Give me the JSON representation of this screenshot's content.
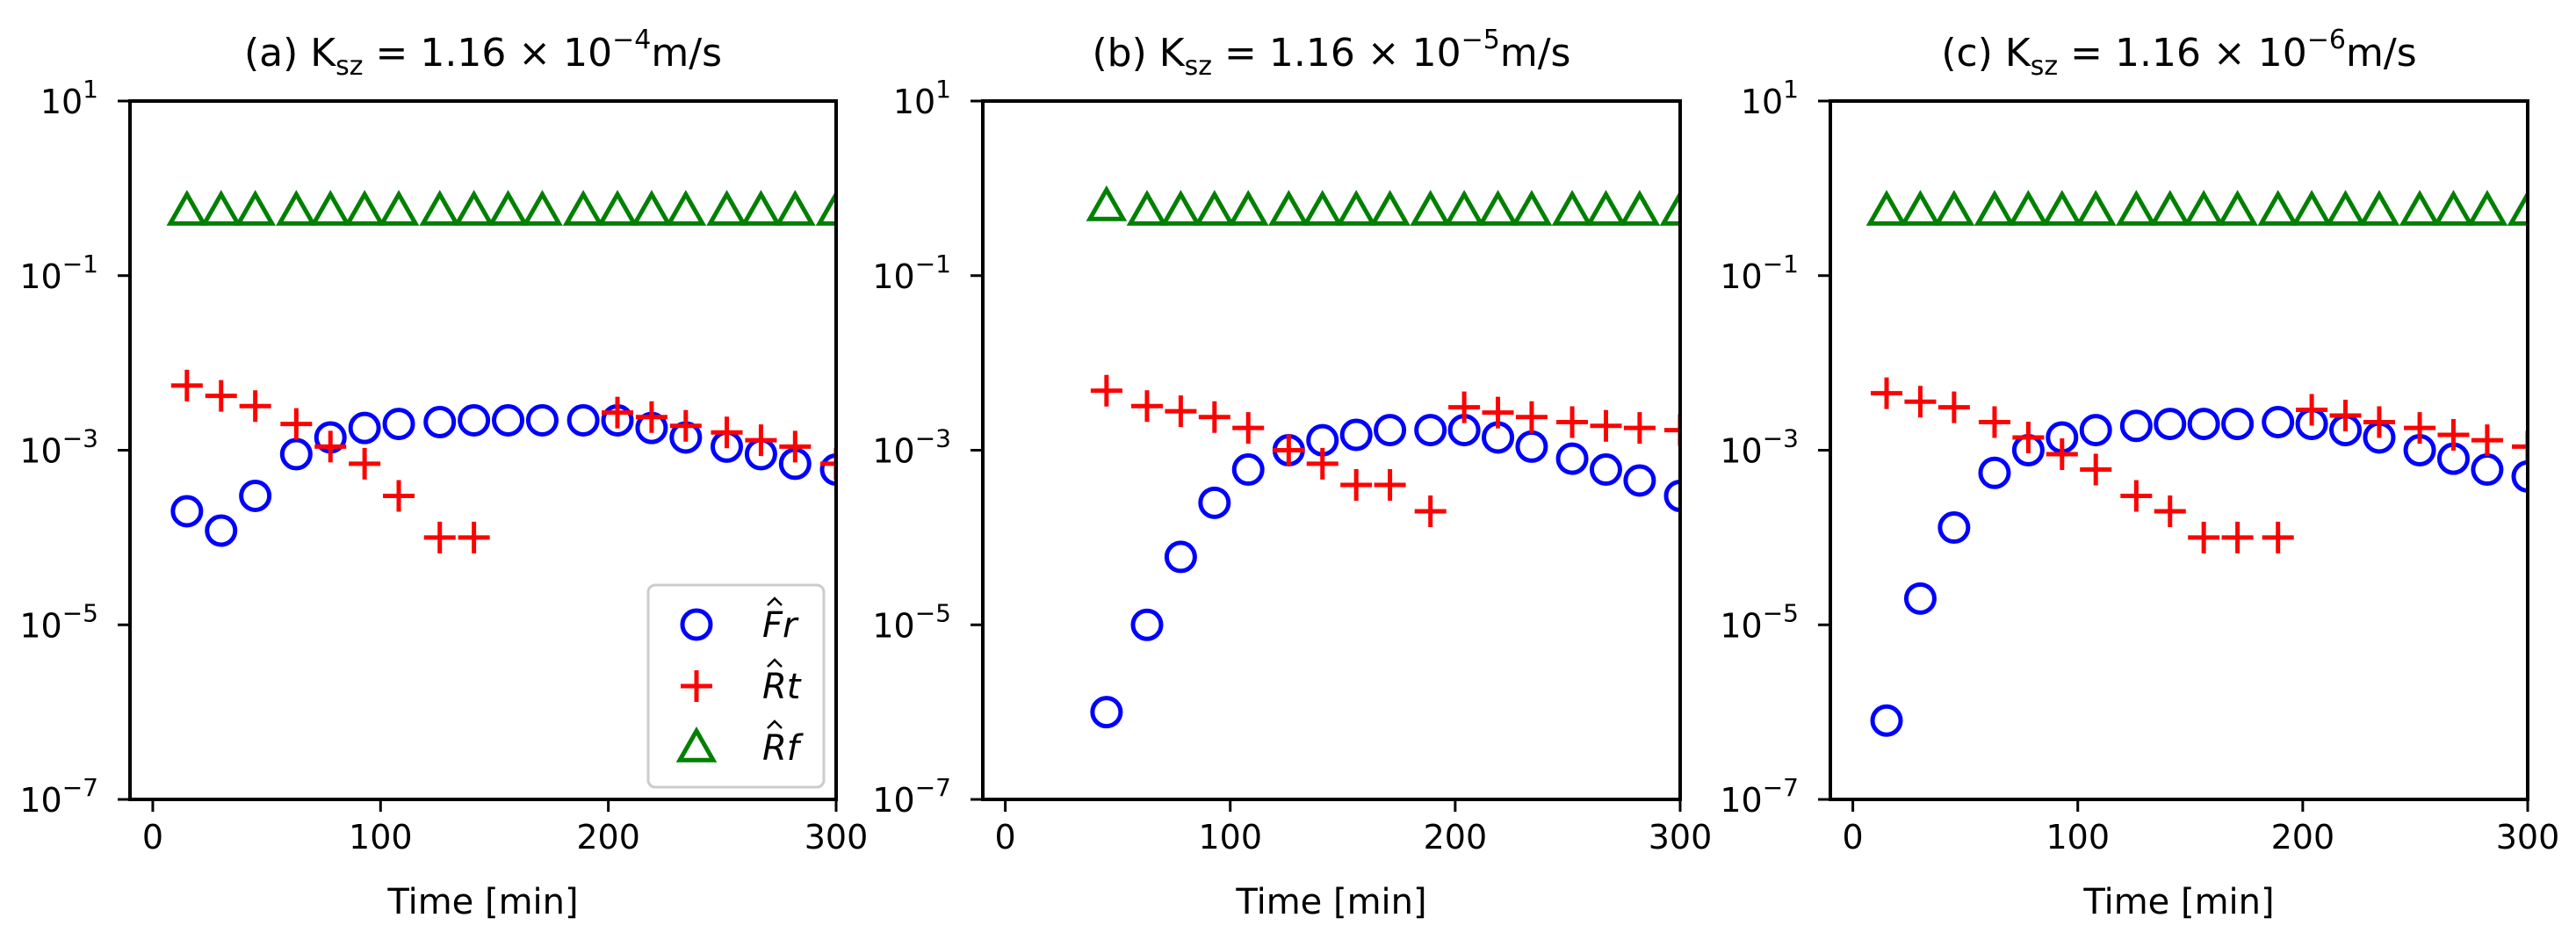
{
  "chart_data": [
    {
      "type": "scatter",
      "title": "(a) K",
      "title_sub": "sz",
      "title_eq": " = 1.16 × 10",
      "title_exp": "−4",
      "title_unit": "m/s",
      "xlabel": "Time [min]",
      "xlim": [
        -10,
        300
      ],
      "ylim": [
        1e-07,
        10
      ],
      "yscale": "log",
      "xticks": [
        0,
        100,
        200,
        300
      ],
      "xtick_labels": [
        "0",
        "100",
        "200",
        "300"
      ],
      "ytick_exponents": [
        1,
        -1,
        -3,
        -5,
        -7
      ],
      "ytick_base": "10",
      "legend": "lower-right",
      "series": [
        {
          "name": "Fr",
          "marker": "circle",
          "color": "#0000ff",
          "x": [
            15,
            30,
            45,
            63,
            78,
            93,
            108,
            126,
            141,
            156,
            171,
            189,
            204,
            219,
            234,
            252,
            267,
            282,
            300
          ],
          "y": [
            0.0002,
            0.00012,
            0.0003,
            0.0009,
            0.0014,
            0.0018,
            0.002,
            0.0021,
            0.0022,
            0.0022,
            0.0022,
            0.0022,
            0.0022,
            0.0018,
            0.0014,
            0.0011,
            0.0009,
            0.0007,
            0.0006
          ]
        },
        {
          "name": "Rt",
          "marker": "plus",
          "color": "#ff0000",
          "x": [
            15,
            30,
            45,
            63,
            78,
            93,
            108,
            126,
            141,
            204,
            219,
            234,
            252,
            267,
            282,
            300
          ],
          "y": [
            0.0055,
            0.0042,
            0.0032,
            0.002,
            0.0011,
            0.0007,
            0.0003,
            0.0001,
            0.0001,
            0.0027,
            0.0024,
            0.0019,
            0.0016,
            0.0013,
            0.0011,
            0.0007
          ]
        },
        {
          "name": "Rf",
          "marker": "triangle",
          "color": "#008000",
          "x": [
            15,
            30,
            45,
            63,
            78,
            93,
            108,
            126,
            141,
            156,
            171,
            189,
            204,
            219,
            234,
            252,
            267,
            282,
            300
          ],
          "y": [
            0.55,
            0.55,
            0.55,
            0.55,
            0.55,
            0.55,
            0.55,
            0.55,
            0.55,
            0.55,
            0.55,
            0.55,
            0.55,
            0.55,
            0.55,
            0.55,
            0.55,
            0.55,
            0.55
          ]
        }
      ]
    },
    {
      "type": "scatter",
      "title": "(b) K",
      "title_sub": "sz",
      "title_eq": " = 1.16 × 10",
      "title_exp": "−5",
      "title_unit": "m/s",
      "xlabel": "Time [min]",
      "xlim": [
        -10,
        300
      ],
      "ylim": [
        1e-07,
        10
      ],
      "yscale": "log",
      "xticks": [
        0,
        100,
        200,
        300
      ],
      "xtick_labels": [
        "0",
        "100",
        "200",
        "300"
      ],
      "ytick_exponents": [
        1,
        -1,
        -3,
        -5,
        -7
      ],
      "ytick_base": "10",
      "series": [
        {
          "name": "Fr",
          "marker": "circle",
          "color": "#0000ff",
          "x": [
            45,
            63,
            78,
            93,
            108,
            126,
            141,
            156,
            171,
            189,
            204,
            219,
            234,
            252,
            267,
            282,
            300
          ],
          "y": [
            1e-06,
            1e-05,
            6e-05,
            0.00025,
            0.0006,
            0.001,
            0.0013,
            0.0015,
            0.0017,
            0.0017,
            0.0017,
            0.0014,
            0.0011,
            0.0008,
            0.0006,
            0.00045,
            0.0003
          ]
        },
        {
          "name": "Rt",
          "marker": "plus",
          "color": "#ff0000",
          "x": [
            45,
            63,
            78,
            93,
            108,
            126,
            141,
            156,
            171,
            189,
            204,
            219,
            234,
            252,
            267,
            282,
            300
          ],
          "y": [
            0.0048,
            0.0032,
            0.0028,
            0.0024,
            0.0018,
            0.001,
            0.0007,
            0.0004,
            0.0004,
            0.0002,
            0.0031,
            0.0027,
            0.0024,
            0.0021,
            0.0019,
            0.0018,
            0.0017
          ]
        },
        {
          "name": "Rf",
          "marker": "triangle",
          "color": "#008000",
          "x": [
            45,
            63,
            78,
            93,
            108,
            126,
            141,
            156,
            171,
            189,
            204,
            219,
            234,
            252,
            267,
            282,
            300
          ],
          "y": [
            0.62,
            0.55,
            0.55,
            0.55,
            0.55,
            0.55,
            0.55,
            0.55,
            0.55,
            0.55,
            0.55,
            0.55,
            0.55,
            0.55,
            0.55,
            0.55,
            0.55
          ]
        }
      ]
    },
    {
      "type": "scatter",
      "title": "(c) K",
      "title_sub": "sz",
      "title_eq": " = 1.16 × 10",
      "title_exp": "−6",
      "title_unit": "m/s",
      "xlabel": "Time [min]",
      "xlim": [
        -10,
        300
      ],
      "ylim": [
        1e-07,
        10
      ],
      "yscale": "log",
      "xticks": [
        0,
        100,
        200,
        300
      ],
      "xtick_labels": [
        "0",
        "100",
        "200",
        "300"
      ],
      "ytick_exponents": [
        1,
        -1,
        -3,
        -5,
        -7
      ],
      "ytick_base": "10",
      "series": [
        {
          "name": "Fr",
          "marker": "circle",
          "color": "#0000ff",
          "x": [
            15,
            30,
            45,
            63,
            78,
            93,
            108,
            126,
            141,
            156,
            171,
            189,
            204,
            219,
            234,
            252,
            267,
            282,
            300
          ],
          "y": [
            8e-07,
            2e-05,
            0.00013,
            0.00055,
            0.001,
            0.0014,
            0.0017,
            0.0019,
            0.002,
            0.002,
            0.002,
            0.0021,
            0.002,
            0.0017,
            0.0014,
            0.001,
            0.0008,
            0.0006,
            0.0005
          ]
        },
        {
          "name": "Rt",
          "marker": "plus",
          "color": "#ff0000",
          "x": [
            15,
            30,
            45,
            63,
            78,
            93,
            108,
            126,
            141,
            156,
            171,
            189,
            204,
            219,
            234,
            252,
            267,
            282,
            300
          ],
          "y": [
            0.0045,
            0.0036,
            0.0031,
            0.0021,
            0.0014,
            0.0009,
            0.0006,
            0.0003,
            0.0002,
            0.0001,
            0.0001,
            0.0001,
            0.0029,
            0.0025,
            0.0021,
            0.0018,
            0.0015,
            0.0013,
            0.0011
          ]
        },
        {
          "name": "Rf",
          "marker": "triangle",
          "color": "#008000",
          "x": [
            15,
            30,
            45,
            63,
            78,
            93,
            108,
            126,
            141,
            156,
            171,
            189,
            204,
            219,
            234,
            252,
            267,
            282,
            300
          ],
          "y": [
            0.55,
            0.55,
            0.55,
            0.55,
            0.55,
            0.55,
            0.55,
            0.55,
            0.55,
            0.55,
            0.55,
            0.55,
            0.55,
            0.55,
            0.55,
            0.55,
            0.55,
            0.55,
            0.55
          ]
        }
      ]
    }
  ]
}
